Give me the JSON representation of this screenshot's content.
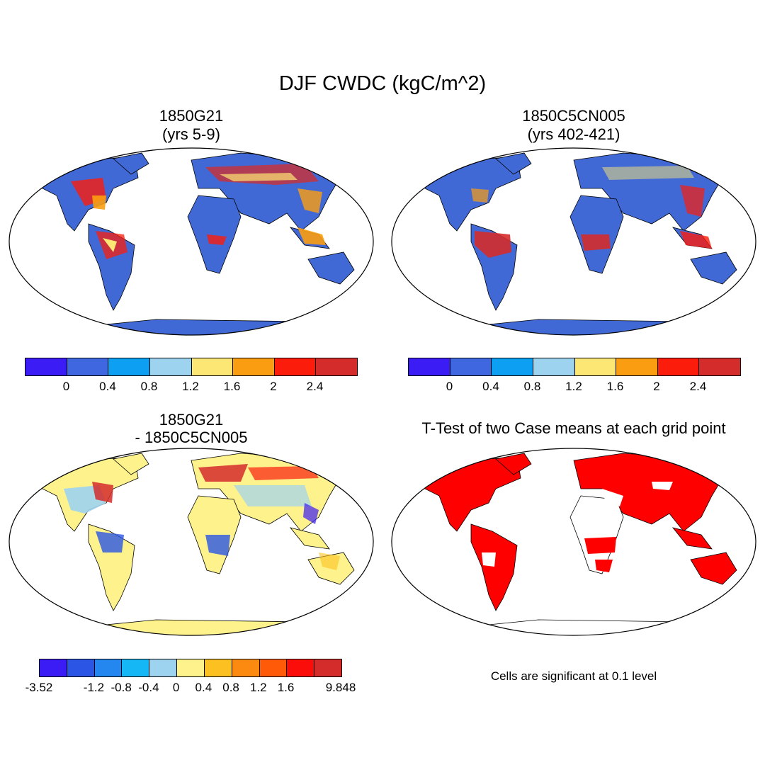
{
  "title": "DJF CWDC (kgC/m^2)",
  "panels": [
    {
      "title_line1": "1850G21",
      "title_line2": "(yrs 5-9)"
    },
    {
      "title_line1": "1850C5CN005",
      "title_line2": "(yrs 402-421)"
    },
    {
      "title_line1": "1850G21",
      "title_line2": "- 1850C5CN005"
    },
    {
      "title_line1": "T-Test of two Case means at each grid point"
    }
  ],
  "colorbar_abs": {
    "colors": [
      "#3b1cf5",
      "#3f68e0",
      "#0d9ff2",
      "#9dd3ef",
      "#fce774",
      "#fb9d10",
      "#fb1c0b",
      "#d42c2a"
    ],
    "labels": [
      "0",
      "0.4",
      "0.8",
      "1.2",
      "1.6",
      "2",
      "2.4"
    ]
  },
  "colorbar_diff": {
    "colors": [
      "#3b1cf5",
      "#2b55e4",
      "#2487f0",
      "#15b7f5",
      "#9dd3ef",
      "#fdf28c",
      "#fcc120",
      "#fd8a10",
      "#ff5a08",
      "#fb0d09",
      "#d42c2a"
    ],
    "labels": [
      "-3.52",
      "-1.2",
      "-0.8",
      "-0.4",
      "0",
      "0.4",
      "0.8",
      "1.2",
      "1.6",
      "9.848"
    ]
  },
  "significance_note": "Cells are significant at 0.1 level"
}
